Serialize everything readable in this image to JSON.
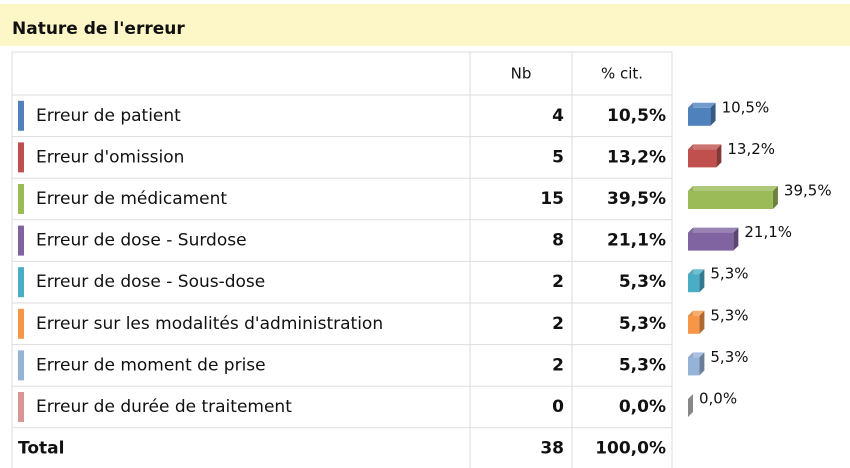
{
  "title": "Nature de l'erreur",
  "chart_data": {
    "type": "bar",
    "columns": [
      "Nb",
      "% cit."
    ],
    "categories": [
      "Erreur de patient",
      "Erreur d'omission",
      "Erreur de médicament",
      "Erreur de dose - Surdose",
      "Erreur de dose - Sous-dose",
      "Erreur sur les modalités d'administration",
      "Erreur de moment de prise",
      "Erreur de durée de traitement"
    ],
    "counts": [
      4,
      5,
      15,
      8,
      2,
      2,
      2,
      0
    ],
    "values": [
      10.5,
      13.2,
      39.5,
      21.1,
      5.3,
      5.3,
      5.3,
      0
    ],
    "value_labels": [
      "10,5%",
      "13,2%",
      "39,5%",
      "21,1%",
      "5,3%",
      "5,3%",
      "5,3%",
      "0,0%"
    ],
    "colors": [
      "#4f81bd",
      "#c0504d",
      "#9bbb59",
      "#8064a2",
      "#4bacc6",
      "#f79646",
      "#95b3d7",
      "#d99694"
    ],
    "total": {
      "label": "Total",
      "count": 38,
      "value": 100,
      "value_label": "100,0%"
    }
  }
}
